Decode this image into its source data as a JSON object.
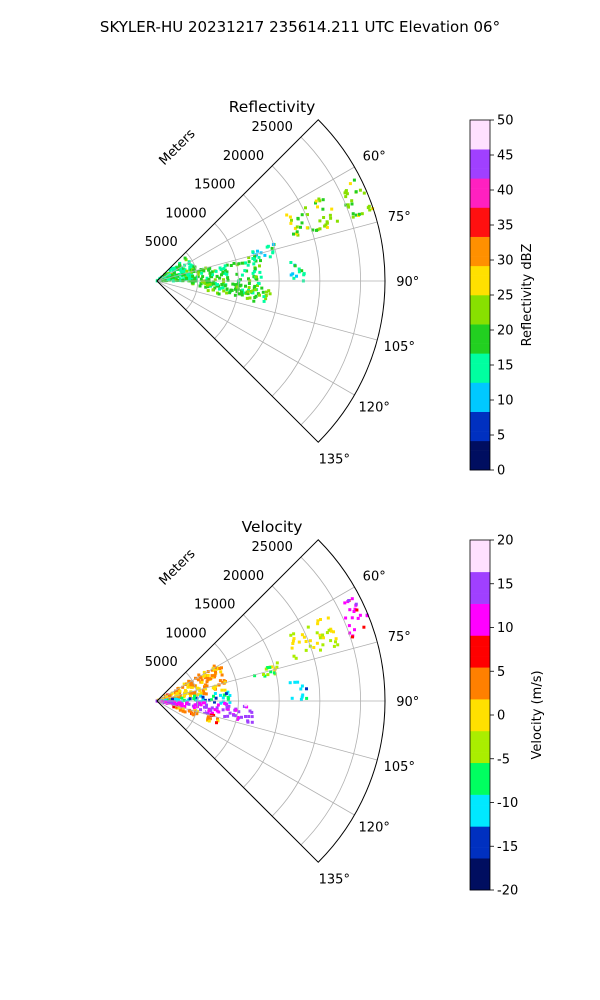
{
  "suptitle": "SKYLER-HU  20231217  235614.211 UTC Elevation 06°",
  "panels": [
    {
      "title": "Reflectivity",
      "range_axis_label": "Meters",
      "range_ticks": [
        "5000",
        "10000",
        "15000",
        "20000",
        "25000"
      ],
      "angle_ticks": [
        "60°",
        "75°",
        "90°",
        "105°",
        "120°",
        "135°"
      ],
      "colorbar": {
        "label": "Reflectivity dBZ",
        "ticks": [
          "0",
          "5",
          "10",
          "15",
          "20",
          "25",
          "30",
          "35",
          "40",
          "45",
          "50"
        ],
        "stops": [
          "#000e60",
          "#0030c0",
          "#00c8ff",
          "#00ffa0",
          "#22d020",
          "#88e000",
          "#ffe000",
          "#ff9000",
          "#ff1010",
          "#ff20c0",
          "#a040ff",
          "#ffe0ff"
        ]
      }
    },
    {
      "title": "Velocity",
      "range_axis_label": "Meters",
      "range_ticks": [
        "5000",
        "10000",
        "15000",
        "20000",
        "25000"
      ],
      "angle_ticks": [
        "60°",
        "75°",
        "90°",
        "105°",
        "120°",
        "135°"
      ],
      "colorbar": {
        "label": "Velocity (m/s)",
        "ticks": [
          "-20",
          "-15",
          "-10",
          "-5",
          "0",
          "5",
          "10",
          "15",
          "20"
        ],
        "stops": [
          "#000e60",
          "#0030c0",
          "#00e8ff",
          "#00ff60",
          "#aaee00",
          "#ffe000",
          "#ff8000",
          "#ff0000",
          "#ff00ff",
          "#a040ff",
          "#ffe0ff"
        ]
      }
    }
  ],
  "chart_data": [
    {
      "type": "heatmap",
      "title": "Reflectivity",
      "projection": "polar-sector",
      "theta_range_deg": [
        45,
        135
      ],
      "r_range_m": [
        0,
        28000
      ],
      "r_ticks_m": [
        5000,
        10000,
        15000,
        20000,
        25000
      ],
      "theta_ticks_deg": [
        60,
        75,
        90,
        105,
        120,
        135
      ],
      "colorbar_range": [
        0,
        50
      ],
      "colorbar_label": "Reflectivity dBZ",
      "grid": true,
      "echo_regions": [
        {
          "theta": [
            50,
            90
          ],
          "r": [
            0,
            5000
          ],
          "value": 17
        },
        {
          "theta": [
            75,
            98
          ],
          "r": [
            4000,
            13000
          ],
          "value": 18
        },
        {
          "theta": [
            92,
            102
          ],
          "r": [
            6000,
            14000
          ],
          "value": 20
        },
        {
          "theta": [
            72,
            78
          ],
          "r": [
            12000,
            15500
          ],
          "value": 14
        },
        {
          "theta": [
            82,
            90
          ],
          "r": [
            16500,
            18500
          ],
          "value": 13
        },
        {
          "theta": [
            63,
            73
          ],
          "r": [
            17500,
            23500
          ],
          "value": 22
        },
        {
          "theta": [
            62,
            72
          ],
          "r": [
            25000,
            28000
          ],
          "value": 23
        }
      ]
    },
    {
      "type": "heatmap",
      "title": "Velocity",
      "projection": "polar-sector",
      "theta_range_deg": [
        45,
        135
      ],
      "r_range_m": [
        0,
        28000
      ],
      "r_ticks_m": [
        5000,
        10000,
        15000,
        20000,
        25000
      ],
      "theta_ticks_deg": [
        60,
        75,
        90,
        105,
        120,
        135
      ],
      "colorbar_range": [
        -20,
        20
      ],
      "colorbar_label": "Velocity (m/s)",
      "grid": true,
      "echo_regions": [
        {
          "theta": [
            58,
            82
          ],
          "r": [
            0,
            9000
          ],
          "value": 2
        },
        {
          "theta": [
            82,
            92
          ],
          "r": [
            0,
            9000
          ],
          "value": -11
        },
        {
          "theta": [
            92,
            104
          ],
          "r": [
            0,
            12000
          ],
          "value": 13
        },
        {
          "theta": [
            104,
            112
          ],
          "r": [
            2000,
            8000
          ],
          "value": 4
        },
        {
          "theta": [
            72,
            78
          ],
          "r": [
            12000,
            15500
          ],
          "value": -4
        },
        {
          "theta": [
            82,
            90
          ],
          "r": [
            16500,
            18500
          ],
          "value": -10
        },
        {
          "theta": [
            63,
            73
          ],
          "r": [
            17500,
            23500
          ],
          "value": -2
        },
        {
          "theta": [
            62,
            72
          ],
          "r": [
            25000,
            28000
          ],
          "value": 11
        }
      ]
    }
  ]
}
